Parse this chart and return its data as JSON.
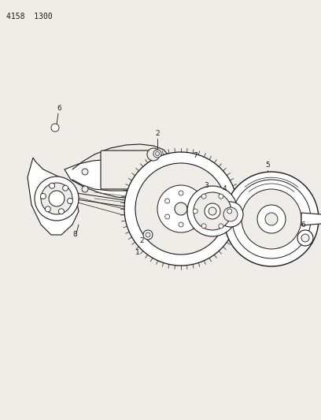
{
  "background_color": "#f0ede8",
  "header_text": "4158  1300",
  "line_color": "#1a1a1a",
  "figsize": [
    4.08,
    5.33
  ],
  "dpi": 100,
  "label_fontsize": 6.5,
  "header_fontsize": 7
}
